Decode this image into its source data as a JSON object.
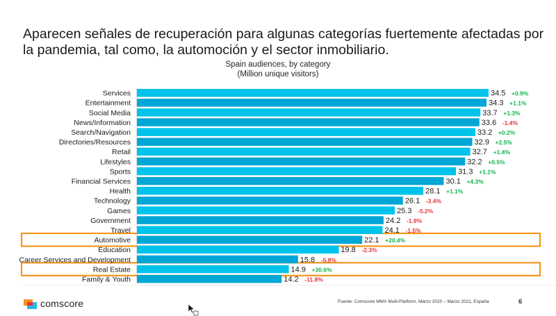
{
  "slide": {
    "headline": "Aparecen señales de recuperación para algunas categorías fuertemente afectadas por la pandemia, tal como, la automoción y el sector inmobiliario.",
    "source": "Fuente: Comscore MMX Multi-Platform, Marzo 2020 – Marzo 2021, España",
    "page_number": "6",
    "logo_text": "comscore",
    "logo_icon": "comscore-logo-icon"
  },
  "colors": {
    "bar_light": "#00c3ec",
    "bar_dark": "#00a6d6",
    "positive": "#12b34a",
    "negative": "#e8333a",
    "highlight": "#f7941d"
  },
  "chart_data": {
    "type": "bar",
    "orientation": "horizontal",
    "title": "Spain audiences, by category",
    "subtitle": "(Million unique visitors)",
    "xlabel": "",
    "ylabel": "",
    "xlim": [
      0,
      35
    ],
    "grid": false,
    "legend": "none",
    "categories": [
      "Services",
      "Entertainment",
      "Social Media",
      "News/Information",
      "Search/Navigation",
      "Directories/Resources",
      "Retail",
      "Lifestyles",
      "Sports",
      "Financial Services",
      "Health",
      "Technology",
      "Games",
      "Government",
      "Travel",
      "Automotive",
      "Education",
      "Career Services and Development",
      "Real Estate",
      "Family & Youth"
    ],
    "values": [
      34.5,
      34.3,
      33.7,
      33.6,
      33.2,
      32.9,
      32.7,
      32.2,
      31.3,
      30.1,
      28.1,
      26.1,
      25.3,
      24.2,
      24.1,
      22.1,
      19.8,
      15.8,
      14.9,
      14.2
    ],
    "value_labels": [
      "34.5",
      "34.3",
      "33.7",
      "33.6",
      "33.2",
      "32.9",
      "32.7",
      "32.2",
      "31.3",
      "30.1",
      "28.1",
      "26.1",
      "25.3",
      "24.2",
      "24.1",
      "22.1",
      "19.8",
      "15.8",
      "14.9",
      "14.2"
    ],
    "change_labels": [
      "+0.9%",
      "+1.1%",
      "+1.3%",
      "-1.4%",
      "+0.2%",
      "+2.5%",
      "+1.4%",
      "+0.5%",
      "+1.1%",
      "+4.3%",
      "+1.1%",
      "-3.4%",
      "-5.2%",
      "-1.9%",
      "-1.5%",
      "+20.4%",
      "-2.3%",
      "-5.8%",
      "+30.6%",
      "-11.8%"
    ],
    "highlighted": [
      "Automotive",
      "Real Estate"
    ]
  }
}
